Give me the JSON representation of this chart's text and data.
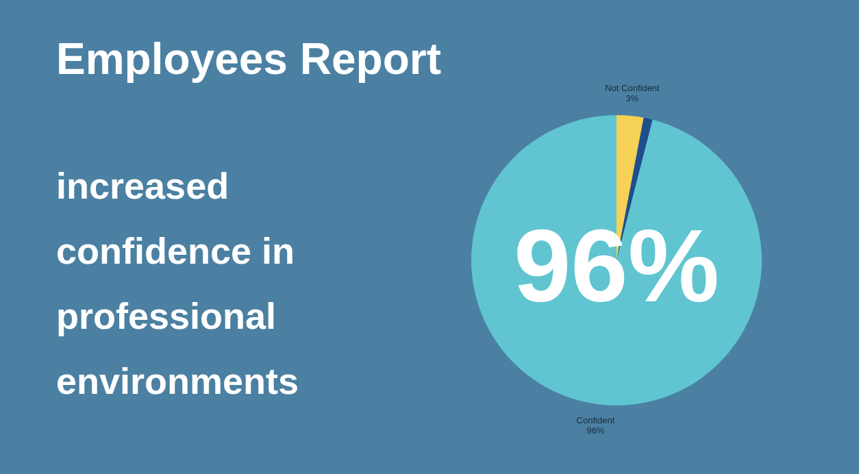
{
  "chart_data": {
    "type": "pie",
    "title": "Employees Report",
    "subtitle": "increased confidence in professional environments",
    "categories": [
      "Not Confident",
      null,
      "Confident"
    ],
    "values": [
      3,
      1,
      96
    ],
    "colors": [
      "#f5d155",
      "#1f4e8c",
      "#60c5d1"
    ],
    "value_labels": [
      "3%",
      null,
      "96%"
    ],
    "annotations": [
      "96%"
    ]
  }
}
